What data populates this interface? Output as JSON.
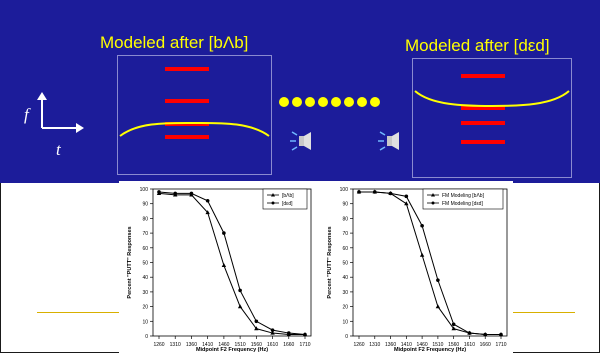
{
  "top_panel": {
    "label_left": "Modeled after [bΛb]",
    "label_right": "Modeled after [dεd]",
    "axis_f": "f",
    "axis_t": "t",
    "colors": {
      "background": "#1c1c9a",
      "text": "#ffff00",
      "bars": "#ff0000",
      "curve": "#ffff00"
    }
  },
  "chart_data": [
    {
      "type": "line",
      "xlabel": "Midpoint F2 Frequency (Hz)",
      "ylabel": "Percent \"PUTT\" Responses",
      "x": [
        1260,
        1310,
        1360,
        1410,
        1460,
        1510,
        1560,
        1610,
        1660,
        1710
      ],
      "ylim": [
        0,
        100
      ],
      "yticks": [
        0,
        10,
        20,
        30,
        40,
        50,
        60,
        70,
        80,
        90,
        100
      ],
      "series": [
        {
          "name": "[bΛb]",
          "marker": "triangle",
          "values": [
            97,
            96,
            96,
            84,
            48,
            20,
            5,
            2,
            1,
            1
          ]
        },
        {
          "name": "[dεd]",
          "marker": "circle",
          "values": [
            98,
            97,
            97,
            92,
            70,
            31,
            10,
            4,
            2,
            1
          ]
        }
      ]
    },
    {
      "type": "line",
      "xlabel": "Midpoint F2 Frequency (Hz)",
      "ylabel": "Percent \"PUTT\" Responses",
      "x": [
        1260,
        1310,
        1360,
        1410,
        1460,
        1510,
        1560,
        1610,
        1660,
        1710
      ],
      "ylim": [
        0,
        100
      ],
      "yticks": [
        0,
        10,
        20,
        30,
        40,
        50,
        60,
        70,
        80,
        90,
        100
      ],
      "series": [
        {
          "name": "FM Modeling [bΛb]",
          "marker": "triangle",
          "values": [
            98,
            98,
            97,
            90,
            55,
            20,
            5,
            2,
            1,
            1
          ]
        },
        {
          "name": "FM Modeling [dεd]",
          "marker": "circle",
          "values": [
            98,
            98,
            97,
            95,
            75,
            38,
            8,
            2,
            1,
            1
          ]
        }
      ]
    }
  ]
}
